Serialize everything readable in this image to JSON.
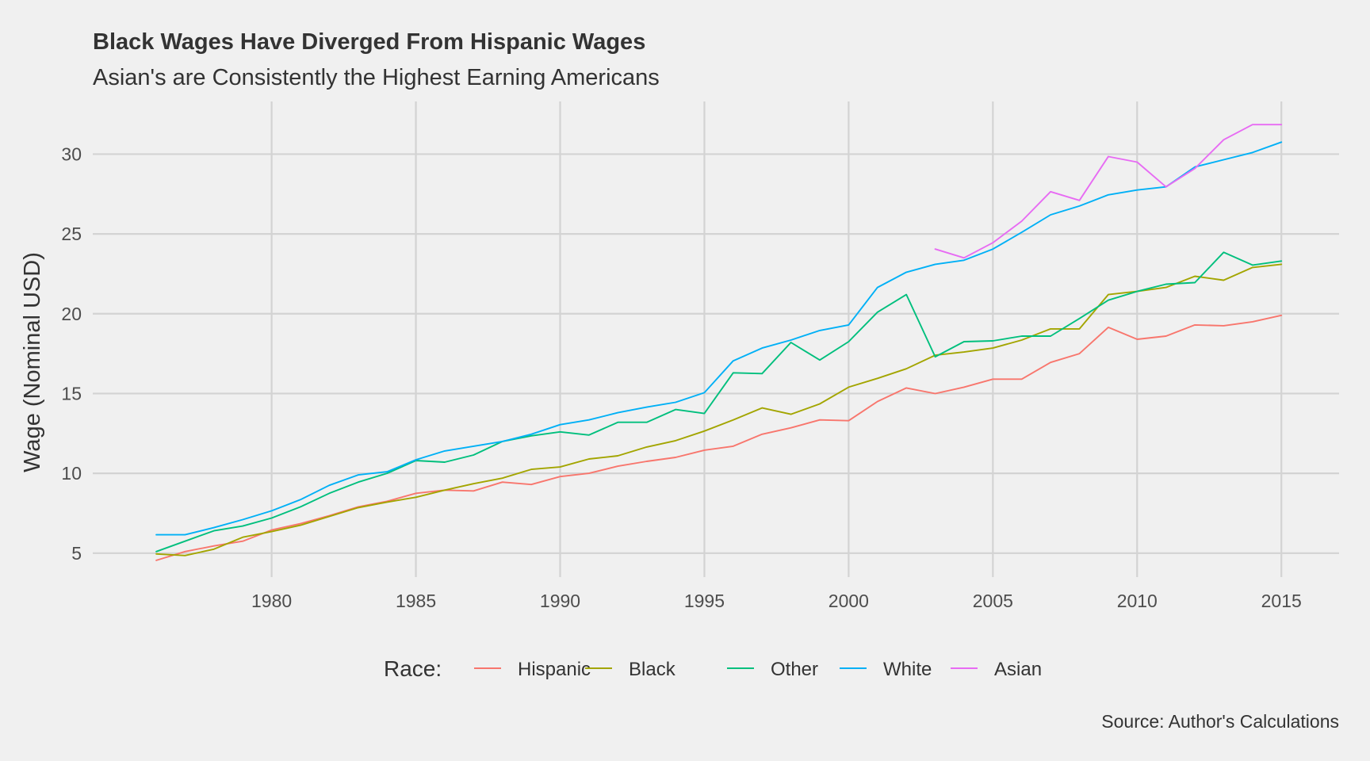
{
  "chart_data": {
    "type": "line",
    "title": "Black Wages Have Diverged From Hispanic Wages",
    "subtitle": "Asian's are Consistently the Highest Earning Americans",
    "xlabel": "",
    "ylabel": "Wage (Nominal USD)",
    "caption": "Source: Author's Calculations",
    "xlim": [
      1973.8,
      2017.0
    ],
    "ylim": [
      3.5,
      33.3
    ],
    "x_ticks": [
      1980,
      1985,
      1990,
      1995,
      2000,
      2005,
      2010,
      2015
    ],
    "y_ticks": [
      5,
      10,
      15,
      20,
      25,
      30
    ],
    "grid": true,
    "legend": {
      "title": "Race:",
      "position": "bottom"
    },
    "series": [
      {
        "name": "Hispanic",
        "color": "#F8766D",
        "x": [
          1976,
          1977,
          1978,
          1979,
          1980,
          1981,
          1982,
          1983,
          1984,
          1985,
          1986,
          1987,
          1988,
          1989,
          1990,
          1991,
          1992,
          1993,
          1994,
          1995,
          1996,
          1997,
          1998,
          1999,
          2000,
          2001,
          2002,
          2003,
          2004,
          2005,
          2006,
          2007,
          2008,
          2009,
          2010,
          2011,
          2012,
          2013,
          2014,
          2015
        ],
        "y": [
          4.55,
          5.1,
          5.45,
          5.75,
          6.45,
          6.85,
          7.35,
          7.9,
          8.25,
          8.75,
          8.95,
          8.9,
          9.45,
          9.3,
          9.8,
          10.0,
          10.45,
          10.75,
          11.0,
          11.45,
          11.7,
          12.45,
          12.85,
          13.35,
          13.3,
          14.5,
          15.35,
          15.0,
          15.4,
          15.9,
          15.9,
          16.95,
          17.5,
          19.15,
          18.4,
          18.6,
          19.3,
          19.25,
          19.5,
          19.9
        ]
      },
      {
        "name": "Black",
        "color": "#A3A500",
        "x": [
          1976,
          1977,
          1978,
          1979,
          1980,
          1981,
          1982,
          1983,
          1984,
          1985,
          1986,
          1987,
          1988,
          1989,
          1990,
          1991,
          1992,
          1993,
          1994,
          1995,
          1996,
          1997,
          1998,
          1999,
          2000,
          2001,
          2002,
          2003,
          2004,
          2005,
          2006,
          2007,
          2008,
          2009,
          2010,
          2011,
          2012,
          2013,
          2014,
          2015
        ],
        "y": [
          4.95,
          4.85,
          5.25,
          6.0,
          6.35,
          6.75,
          7.3,
          7.85,
          8.2,
          8.5,
          8.95,
          9.35,
          9.7,
          10.25,
          10.4,
          10.9,
          11.1,
          11.65,
          12.05,
          12.65,
          13.35,
          14.1,
          13.7,
          14.35,
          15.4,
          15.95,
          16.55,
          17.4,
          17.6,
          17.85,
          18.35,
          19.05,
          19.05,
          21.2,
          21.4,
          21.65,
          22.35,
          22.1,
          22.9,
          23.1
        ]
      },
      {
        "name": "Other",
        "color": "#00BF7D",
        "x": [
          1976,
          1977,
          1978,
          1979,
          1980,
          1981,
          1982,
          1983,
          1984,
          1985,
          1986,
          1987,
          1988,
          1989,
          1990,
          1991,
          1992,
          1993,
          1994,
          1995,
          1996,
          1997,
          1998,
          1999,
          2000,
          2001,
          2002,
          2003,
          2004,
          2005,
          2006,
          2007,
          2008,
          2009,
          2010,
          2011,
          2012,
          2013,
          2014,
          2015
        ],
        "y": [
          5.1,
          5.75,
          6.4,
          6.7,
          7.2,
          7.9,
          8.75,
          9.45,
          10.0,
          10.8,
          10.7,
          11.15,
          12.0,
          12.35,
          12.6,
          12.4,
          13.2,
          13.2,
          14.0,
          13.75,
          16.3,
          16.25,
          18.2,
          17.1,
          18.25,
          20.1,
          21.2,
          17.3,
          18.25,
          18.3,
          18.6,
          18.6,
          19.7,
          20.85,
          21.4,
          21.85,
          21.95,
          23.85,
          23.05,
          23.3
        ]
      },
      {
        "name": "White",
        "color": "#00B0F6",
        "x": [
          1976,
          1977,
          1978,
          1979,
          1980,
          1981,
          1982,
          1983,
          1984,
          1985,
          1986,
          1987,
          1988,
          1989,
          1990,
          1991,
          1992,
          1993,
          1994,
          1995,
          1996,
          1997,
          1998,
          1999,
          2000,
          2001,
          2002,
          2003,
          2004,
          2005,
          2006,
          2007,
          2008,
          2009,
          2010,
          2011,
          2012,
          2013,
          2014,
          2015
        ],
        "y": [
          6.15,
          6.15,
          6.6,
          7.1,
          7.65,
          8.35,
          9.25,
          9.9,
          10.1,
          10.85,
          11.4,
          11.7,
          12.0,
          12.45,
          13.05,
          13.35,
          13.8,
          14.15,
          14.45,
          15.05,
          17.05,
          17.85,
          18.35,
          18.95,
          19.3,
          21.65,
          22.6,
          23.1,
          23.35,
          24.05,
          25.1,
          26.2,
          26.75,
          27.45,
          27.75,
          27.95,
          29.2,
          29.65,
          30.1,
          30.75
        ]
      },
      {
        "name": "Asian",
        "color": "#E76BF3",
        "x": [
          2003,
          2004,
          2005,
          2006,
          2007,
          2008,
          2009,
          2010,
          2011,
          2012,
          2013,
          2014,
          2015
        ],
        "y": [
          24.05,
          23.5,
          24.45,
          25.8,
          27.65,
          27.1,
          29.85,
          29.5,
          27.95,
          29.1,
          30.9,
          31.85,
          31.85
        ]
      }
    ]
  }
}
